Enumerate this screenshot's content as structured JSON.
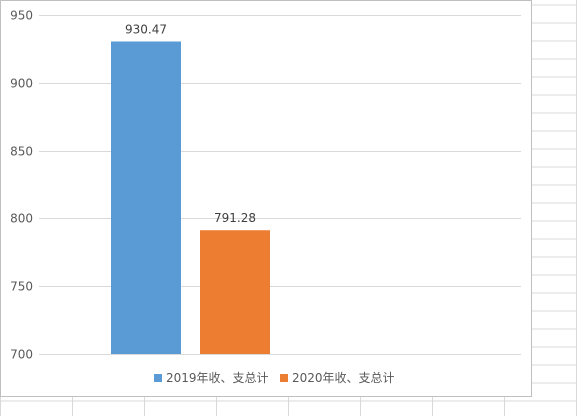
{
  "chart_data": {
    "type": "bar",
    "title": "",
    "xlabel": "",
    "ylabel": "",
    "categories": [
      ""
    ],
    "series": [
      {
        "name": "2019年收、支总计",
        "values": [
          930.47
        ],
        "color": "#5b9bd5"
      },
      {
        "name": "2020年收、支总计",
        "values": [
          791.28
        ],
        "color": "#ed7d31"
      }
    ],
    "ylim": [
      700,
      950
    ],
    "yticks": [
      700,
      750,
      800,
      850,
      900,
      950
    ],
    "data_labels": [
      "930.47",
      "791.28"
    ],
    "grid": true,
    "legend_position": "bottom"
  }
}
